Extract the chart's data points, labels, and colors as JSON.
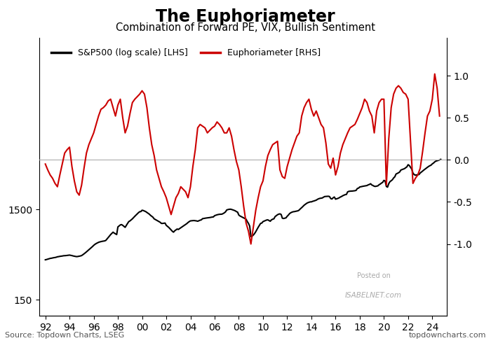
{
  "title": "The Euphoriameter",
  "subtitle": "Combination of Forward PE, VIX, Bullish Sentiment",
  "source_left": "Source: Topdown Charts, LSEG",
  "source_right": "topdowncharts.com",
  "sp500_color": "#000000",
  "euph_color": "#cc0000",
  "sp500_label": "S&P500 (log scale) [LHS]",
  "euph_label": "Euphoriameter [RHS]",
  "lhs_ylim": [
    100,
    120000
  ],
  "rhs_ylim": [
    -1.85,
    1.45
  ],
  "rhs_yticks": [
    -1.0,
    -0.5,
    0.0,
    0.5,
    1.0
  ],
  "xticks": [
    1992,
    1994,
    1996,
    1998,
    2000,
    2002,
    2004,
    2006,
    2008,
    2010,
    2012,
    2014,
    2016,
    2018,
    2020,
    2022,
    2024
  ],
  "xlabels": [
    "92",
    "94",
    "96",
    "98",
    "00",
    "02",
    "04",
    "06",
    "08",
    "10",
    "12",
    "14",
    "16",
    "18",
    "20",
    "22",
    "24"
  ],
  "background_color": "#ffffff",
  "zero_line_color": "#aaaaaa",
  "sp500_data": {
    "years": [
      1992.0,
      1992.1,
      1992.2,
      1992.3,
      1992.4,
      1992.5,
      1992.6,
      1992.7,
      1992.8,
      1992.9,
      1993.0,
      1993.1,
      1993.2,
      1993.3,
      1993.4,
      1993.5,
      1993.6,
      1993.7,
      1993.8,
      1993.9,
      1994.0,
      1994.1,
      1994.2,
      1994.3,
      1994.4,
      1994.5,
      1994.6,
      1994.7,
      1994.8,
      1994.9,
      1995.0,
      1995.1,
      1995.2,
      1995.3,
      1995.4,
      1995.5,
      1995.6,
      1995.7,
      1995.8,
      1995.9,
      1996.0,
      1996.1,
      1996.2,
      1996.3,
      1996.4,
      1996.5,
      1996.6,
      1996.7,
      1996.8,
      1996.9,
      1997.0,
      1997.1,
      1997.2,
      1997.3,
      1997.4,
      1997.5,
      1997.6,
      1997.7,
      1997.8,
      1997.9,
      1998.0,
      1998.1,
      1998.2,
      1998.3,
      1998.4,
      1998.5,
      1998.6,
      1998.7,
      1998.8,
      1998.9,
      1999.0,
      1999.1,
      1999.2,
      1999.3,
      1999.4,
      1999.5,
      1999.6,
      1999.7,
      1999.8,
      1999.9,
      2000.0,
      2000.1,
      2000.2,
      2000.3,
      2000.4,
      2000.5,
      2000.6,
      2000.7,
      2000.8,
      2000.9,
      2001.0,
      2001.1,
      2001.2,
      2001.3,
      2001.4,
      2001.5,
      2001.6,
      2001.7,
      2001.8,
      2001.9,
      2002.0,
      2002.1,
      2002.2,
      2002.3,
      2002.4,
      2002.5,
      2002.6,
      2002.7,
      2002.8,
      2002.9,
      2003.0,
      2003.1,
      2003.2,
      2003.3,
      2003.4,
      2003.5,
      2003.6,
      2003.7,
      2003.8,
      2003.9,
      2004.0,
      2004.1,
      2004.2,
      2004.3,
      2004.4,
      2004.5,
      2004.6,
      2004.7,
      2004.8,
      2004.9,
      2005.0,
      2005.1,
      2005.2,
      2005.3,
      2005.4,
      2005.5,
      2005.6,
      2005.7,
      2005.8,
      2005.9,
      2006.0,
      2006.1,
      2006.2,
      2006.3,
      2006.4,
      2006.5,
      2006.6,
      2006.7,
      2006.8,
      2006.9,
      2007.0,
      2007.1,
      2007.2,
      2007.3,
      2007.4,
      2007.5,
      2007.6,
      2007.7,
      2007.8,
      2007.9,
      2008.0,
      2008.1,
      2008.2,
      2008.3,
      2008.4,
      2008.5,
      2008.6,
      2008.7,
      2008.8,
      2008.9,
      2009.0,
      2009.1,
      2009.2,
      2009.3,
      2009.4,
      2009.5,
      2009.6,
      2009.7,
      2009.8,
      2009.9,
      2010.0,
      2010.1,
      2010.2,
      2010.3,
      2010.4,
      2010.5,
      2010.6,
      2010.7,
      2010.8,
      2010.9,
      2011.0,
      2011.1,
      2011.2,
      2011.3,
      2011.4,
      2011.5,
      2011.6,
      2011.7,
      2011.8,
      2011.9,
      2012.0,
      2012.1,
      2012.2,
      2012.3,
      2012.4,
      2012.5,
      2012.6,
      2012.7,
      2012.8,
      2012.9,
      2013.0,
      2013.1,
      2013.2,
      2013.3,
      2013.4,
      2013.5,
      2013.6,
      2013.7,
      2013.8,
      2013.9,
      2014.0,
      2014.1,
      2014.2,
      2014.3,
      2014.4,
      2014.5,
      2014.6,
      2014.7,
      2014.8,
      2014.9,
      2015.0,
      2015.1,
      2015.2,
      2015.3,
      2015.4,
      2015.5,
      2015.6,
      2015.7,
      2015.8,
      2015.9,
      2016.0,
      2016.1,
      2016.2,
      2016.3,
      2016.4,
      2016.5,
      2016.6,
      2016.7,
      2016.8,
      2016.9,
      2017.0,
      2017.1,
      2017.2,
      2017.3,
      2017.4,
      2017.5,
      2017.6,
      2017.7,
      2017.8,
      2017.9,
      2018.0,
      2018.1,
      2018.2,
      2018.3,
      2018.4,
      2018.5,
      2018.6,
      2018.7,
      2018.8,
      2018.9,
      2019.0,
      2019.1,
      2019.2,
      2019.3,
      2019.4,
      2019.5,
      2019.6,
      2019.7,
      2019.8,
      2019.9,
      2020.0,
      2020.1,
      2020.2,
      2020.3,
      2020.4,
      2020.5,
      2020.6,
      2020.7,
      2020.8,
      2020.9,
      2021.0,
      2021.1,
      2021.2,
      2021.3,
      2021.4,
      2021.5,
      2021.6,
      2021.7,
      2021.8,
      2021.9,
      2022.0,
      2022.1,
      2022.2,
      2022.3,
      2022.4,
      2022.5,
      2022.6,
      2022.7,
      2022.8,
      2022.9,
      2023.0,
      2023.1,
      2023.2,
      2023.3,
      2023.4,
      2023.5,
      2023.6,
      2023.7,
      2023.8,
      2023.9,
      2024.0,
      2024.1,
      2024.2,
      2024.3,
      2024.4,
      2024.5,
      2024.6,
      2024.7
    ],
    "values": [
      415,
      418,
      422,
      426,
      430,
      432,
      435,
      438,
      440,
      443,
      448,
      450,
      453,
      455,
      457,
      460,
      461,
      462,
      464,
      466,
      468,
      465,
      462,
      458,
      455,
      452,
      450,
      452,
      455,
      458,
      462,
      472,
      483,
      495,
      508,
      522,
      537,
      552,
      567,
      582,
      600,
      615,
      628,
      638,
      648,
      655,
      660,
      665,
      668,
      672,
      680,
      705,
      730,
      760,
      790,
      815,
      840,
      820,
      805,
      790,
      960,
      985,
      1010,
      1020,
      1000,
      975,
      950,
      1000,
      1050,
      1100,
      1120,
      1150,
      1180,
      1220,
      1260,
      1300,
      1340,
      1380,
      1415,
      1420,
      1470,
      1460,
      1440,
      1420,
      1390,
      1360,
      1330,
      1290,
      1260,
      1230,
      1180,
      1160,
      1140,
      1120,
      1100,
      1080,
      1050,
      1050,
      1055,
      1060,
      1000,
      975,
      950,
      920,
      890,
      860,
      840,
      870,
      890,
      910,
      900,
      920,
      940,
      960,
      980,
      1000,
      1020,
      1045,
      1075,
      1100,
      1120,
      1125,
      1128,
      1130,
      1125,
      1120,
      1110,
      1125,
      1140,
      1150,
      1185,
      1192,
      1198,
      1205,
      1210,
      1215,
      1220,
      1228,
      1235,
      1240,
      1280,
      1295,
      1308,
      1318,
      1325,
      1328,
      1330,
      1350,
      1375,
      1410,
      1480,
      1495,
      1505,
      1510,
      1500,
      1485,
      1468,
      1450,
      1420,
      1400,
      1300,
      1270,
      1250,
      1230,
      1210,
      1190,
      1170,
      1100,
      1050,
      980,
      750,
      760,
      780,
      810,
      850,
      900,
      950,
      1000,
      1050,
      1060,
      1100,
      1115,
      1130,
      1145,
      1150,
      1130,
      1110,
      1150,
      1170,
      1180,
      1250,
      1280,
      1310,
      1330,
      1340,
      1320,
      1200,
      1190,
      1200,
      1210,
      1260,
      1300,
      1350,
      1380,
      1400,
      1415,
      1420,
      1430,
      1440,
      1450,
      1480,
      1530,
      1570,
      1620,
      1670,
      1710,
      1750,
      1780,
      1800,
      1820,
      1820,
      1845,
      1860,
      1880,
      1900,
      1940,
      1970,
      1990,
      2000,
      2010,
      2050,
      2085,
      2090,
      2095,
      2100,
      2085,
      1980,
      1960,
      2020,
      2060,
      1950,
      1970,
      1990,
      2020,
      2060,
      2090,
      2130,
      2160,
      2190,
      2200,
      2350,
      2380,
      2390,
      2395,
      2400,
      2410,
      2420,
      2440,
      2560,
      2585,
      2660,
      2680,
      2700,
      2715,
      2730,
      2750,
      2760,
      2810,
      2840,
      2890,
      2800,
      2760,
      2710,
      2700,
      2720,
      2740,
      2820,
      2870,
      2940,
      3000,
      3150,
      3100,
      2700,
      2650,
      2900,
      3050,
      3120,
      3200,
      3350,
      3450,
      3700,
      3760,
      3820,
      3900,
      4100,
      4150,
      4200,
      4250,
      4350,
      4450,
      4700,
      4600,
      4400,
      4200,
      3800,
      3650,
      3600,
      3620,
      3640,
      3660,
      3800,
      3900,
      4000,
      4100,
      4200,
      4300,
      4400,
      4500,
      4580,
      4650,
      4800,
      4900,
      5050,
      5150,
      5200,
      5250,
      5300,
      5380
    ]
  },
  "euph_data": {
    "years": [
      1992.0,
      1992.2,
      1992.4,
      1992.6,
      1992.8,
      1993.0,
      1993.2,
      1993.4,
      1993.6,
      1993.8,
      1994.0,
      1994.2,
      1994.4,
      1994.6,
      1994.8,
      1995.0,
      1995.2,
      1995.4,
      1995.6,
      1995.8,
      1996.0,
      1996.2,
      1996.4,
      1996.6,
      1996.8,
      1997.0,
      1997.2,
      1997.4,
      1997.6,
      1997.8,
      1998.0,
      1998.2,
      1998.4,
      1998.6,
      1998.8,
      1999.0,
      1999.2,
      1999.4,
      1999.6,
      1999.8,
      2000.0,
      2000.2,
      2000.4,
      2000.6,
      2000.8,
      2001.0,
      2001.2,
      2001.4,
      2001.6,
      2001.8,
      2002.0,
      2002.2,
      2002.4,
      2002.6,
      2002.8,
      2003.0,
      2003.2,
      2003.4,
      2003.6,
      2003.8,
      2004.0,
      2004.2,
      2004.4,
      2004.6,
      2004.8,
      2005.0,
      2005.2,
      2005.4,
      2005.6,
      2005.8,
      2006.0,
      2006.2,
      2006.4,
      2006.6,
      2006.8,
      2007.0,
      2007.2,
      2007.4,
      2007.6,
      2007.8,
      2008.0,
      2008.2,
      2008.4,
      2008.6,
      2008.8,
      2009.0,
      2009.2,
      2009.4,
      2009.6,
      2009.8,
      2010.0,
      2010.2,
      2010.4,
      2010.6,
      2010.8,
      2011.0,
      2011.2,
      2011.4,
      2011.6,
      2011.8,
      2012.0,
      2012.2,
      2012.4,
      2012.6,
      2012.8,
      2013.0,
      2013.2,
      2013.4,
      2013.6,
      2013.8,
      2014.0,
      2014.2,
      2014.4,
      2014.6,
      2014.8,
      2015.0,
      2015.2,
      2015.4,
      2015.6,
      2015.8,
      2016.0,
      2016.2,
      2016.4,
      2016.6,
      2016.8,
      2017.0,
      2017.2,
      2017.4,
      2017.6,
      2017.8,
      2018.0,
      2018.2,
      2018.4,
      2018.6,
      2018.8,
      2019.0,
      2019.2,
      2019.4,
      2019.6,
      2019.8,
      2020.0,
      2020.2,
      2020.4,
      2020.6,
      2020.8,
      2021.0,
      2021.2,
      2021.4,
      2021.6,
      2021.8,
      2022.0,
      2022.2,
      2022.4,
      2022.6,
      2022.8,
      2023.0,
      2023.2,
      2023.4,
      2023.6,
      2023.8,
      2024.0,
      2024.2,
      2024.4,
      2024.6
    ],
    "values": [
      -0.05,
      -0.12,
      -0.18,
      -0.22,
      -0.28,
      -0.32,
      -0.18,
      -0.05,
      0.08,
      0.12,
      0.15,
      -0.08,
      -0.25,
      -0.38,
      -0.42,
      -0.3,
      -0.1,
      0.08,
      0.18,
      0.25,
      0.32,
      0.42,
      0.52,
      0.6,
      0.62,
      0.65,
      0.7,
      0.72,
      0.62,
      0.52,
      0.65,
      0.72,
      0.5,
      0.32,
      0.4,
      0.55,
      0.68,
      0.72,
      0.75,
      0.78,
      0.82,
      0.78,
      0.62,
      0.38,
      0.18,
      0.05,
      -0.12,
      -0.22,
      -0.32,
      -0.38,
      -0.45,
      -0.55,
      -0.65,
      -0.55,
      -0.45,
      -0.4,
      -0.32,
      -0.35,
      -0.38,
      -0.45,
      -0.32,
      -0.08,
      0.12,
      0.38,
      0.42,
      0.4,
      0.38,
      0.32,
      0.35,
      0.38,
      0.4,
      0.45,
      0.42,
      0.38,
      0.32,
      0.32,
      0.38,
      0.28,
      0.12,
      -0.02,
      -0.12,
      -0.32,
      -0.55,
      -0.75,
      -0.85,
      -1.0,
      -0.8,
      -0.6,
      -0.45,
      -0.32,
      -0.25,
      -0.08,
      0.05,
      0.12,
      0.18,
      0.2,
      0.22,
      -0.12,
      -0.2,
      -0.22,
      -0.08,
      0.02,
      0.12,
      0.2,
      0.28,
      0.32,
      0.52,
      0.62,
      0.68,
      0.72,
      0.6,
      0.52,
      0.58,
      0.5,
      0.42,
      0.38,
      0.2,
      -0.05,
      -0.1,
      0.02,
      -0.18,
      -0.08,
      0.08,
      0.18,
      0.25,
      0.32,
      0.38,
      0.4,
      0.42,
      0.48,
      0.55,
      0.62,
      0.72,
      0.68,
      0.58,
      0.52,
      0.32,
      0.58,
      0.68,
      0.72,
      0.72,
      -0.3,
      0.25,
      0.62,
      0.78,
      0.85,
      0.88,
      0.85,
      0.8,
      0.78,
      0.72,
      0.22,
      -0.28,
      -0.22,
      -0.18,
      -0.1,
      0.1,
      0.32,
      0.52,
      0.58,
      0.72,
      1.02,
      0.85,
      0.52
    ]
  }
}
